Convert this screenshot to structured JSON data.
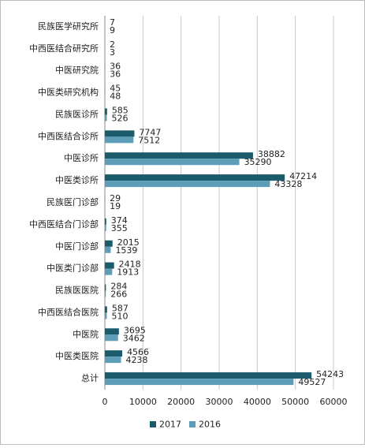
{
  "chart_data": {
    "type": "barh",
    "categories": [
      "民族医学研究所",
      "中西医结合研究所",
      "中医研究院",
      "中医类研究机构",
      "民族医诊所",
      "中西医结合诊所",
      "中医诊所",
      "中医类诊所",
      "民族医门诊部",
      "中西医结合门诊部",
      "中医门诊部",
      "中医类门诊部",
      "民族医医院",
      "中西医结合医院",
      "中医院",
      "中医类医院",
      "总计"
    ],
    "series": [
      {
        "name": "2017",
        "color": "#1b5b6c",
        "values": [
          7,
          2,
          36,
          45,
          585,
          7747,
          38882,
          47214,
          29,
          374,
          2015,
          2418,
          284,
          587,
          3695,
          4566,
          54243
        ]
      },
      {
        "name": "2016",
        "color": "#5e9db8",
        "values": [
          9,
          3,
          36,
          48,
          526,
          7512,
          35290,
          43328,
          19,
          355,
          1539,
          1913,
          266,
          510,
          3462,
          4238,
          49527
        ]
      }
    ],
    "xlim": [
      0,
      60000
    ],
    "xticks": [
      0,
      10000,
      20000,
      30000,
      40000,
      50000,
      60000
    ],
    "grid": true,
    "legend": "bottom"
  }
}
